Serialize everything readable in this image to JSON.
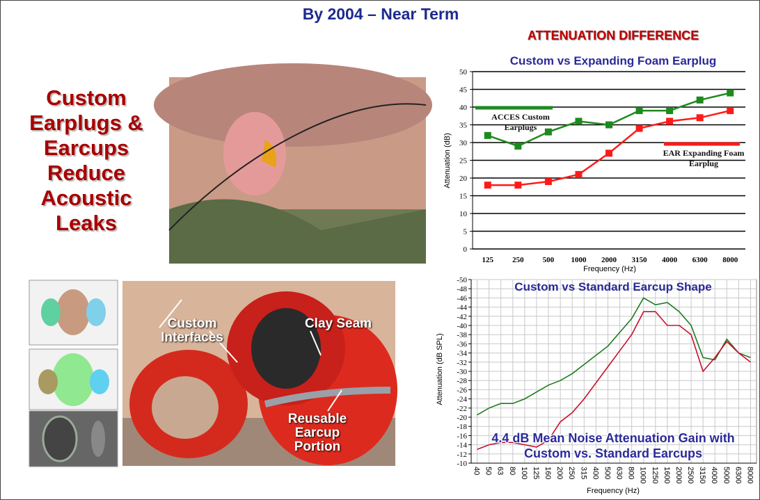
{
  "slide": {
    "title": "By 2004 – Near Term",
    "headline": [
      "Custom",
      "Earplugs &",
      "Earcups",
      "Reduce",
      "Acoustic",
      "Leaks"
    ],
    "photo_labels": [
      "Custom Interfaces",
      "Clay Seam",
      "Reusable Earcup Portion"
    ],
    "section_header": "ATTENUATION DIFFERENCE"
  },
  "chart_data": [
    {
      "type": "line",
      "title": "Custom vs Expanding Foam Earplug",
      "x_label": "Frequency (Hz)",
      "y_label": "Attenuation (dB)",
      "categories": [
        "125",
        "250",
        "500",
        "1000",
        "2000",
        "3150",
        "4000",
        "6300",
        "8000"
      ],
      "series": [
        {
          "name": "ACCES Custom Earplugs",
          "color": "#1e8a1e",
          "values": [
            32,
            29,
            33,
            36,
            35,
            39,
            39,
            42,
            44
          ]
        },
        {
          "name": "EAR Expanding Foam Earplug",
          "color": "#ff1a1a",
          "values": [
            18,
            18,
            19,
            21,
            27,
            34,
            36,
            37,
            39
          ]
        }
      ],
      "ylim": [
        0,
        50
      ],
      "yticks": [
        0,
        5,
        10,
        15,
        20,
        25,
        30,
        35,
        40,
        45,
        50
      ],
      "grid": true,
      "markers": true
    },
    {
      "type": "line",
      "title": "Custom vs Standard Earcup Shape",
      "x_label": "Frequency (Hz)",
      "y_label": "Attenuation (dB SPL)",
      "annotation": "4.4 dB Mean Noise Attenuation Gain with Custom vs. Standard Earcups",
      "categories": [
        "40",
        "50",
        "63",
        "80",
        "100",
        "125",
        "160",
        "200",
        "250",
        "315",
        "400",
        "500",
        "630",
        "800",
        "1000",
        "1250",
        "1600",
        "2000",
        "2500",
        "3150",
        "4000",
        "5000",
        "6300",
        "8000"
      ],
      "series": [
        {
          "color": "#1e7a1e",
          "values": [
            -20.5,
            -22,
            -23,
            -23,
            -24,
            -25.5,
            -27,
            -28,
            -29.5,
            -31.5,
            -33.5,
            -35.5,
            -38.5,
            -41.5,
            -46,
            -44.5,
            -45,
            -43,
            -40,
            -33,
            -32.5,
            -37,
            -34,
            -33
          ]
        },
        {
          "color": "#c8102e",
          "values": [
            -13,
            -14,
            -14.5,
            -14.5,
            -14,
            -13.5,
            -15,
            -19,
            -21,
            -24,
            -27.5,
            -31,
            -34.5,
            -38,
            -43,
            -43,
            -40,
            -40,
            -38,
            -30,
            -33,
            -36.5,
            -34,
            -32
          ]
        }
      ],
      "ylim": [
        -10,
        -50
      ],
      "yticks": [
        -50,
        -48,
        -46,
        -44,
        -42,
        -40,
        -38,
        -36,
        -34,
        -32,
        -30,
        -28,
        -26,
        -24,
        -22,
        -20,
        -18,
        -16,
        -14,
        -12,
        -10
      ],
      "grid": true,
      "markers": false
    }
  ]
}
